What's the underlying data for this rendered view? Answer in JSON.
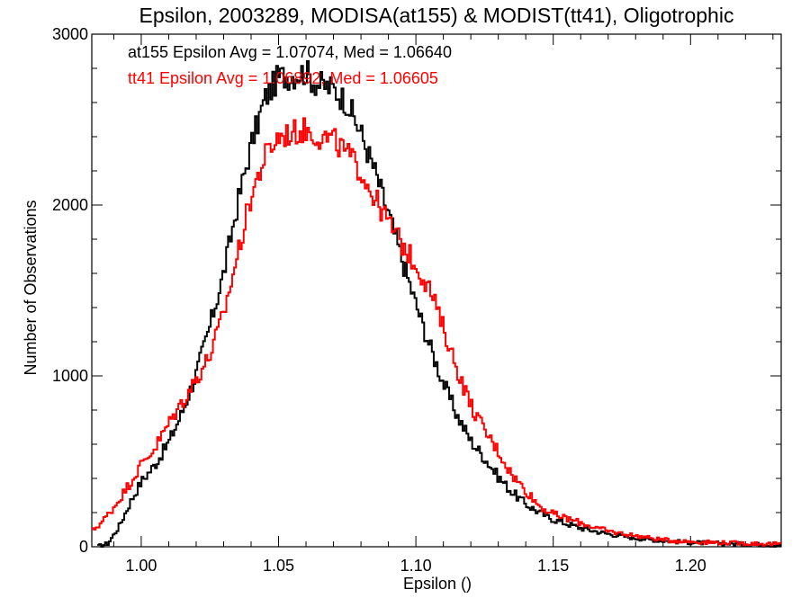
{
  "chart_data": {
    "type": "line",
    "title": "Epsilon, 2003289, MODISA(at155) & MODIST(tt41), Oligotrophic",
    "xlabel": "Epsilon ()",
    "ylabel": "Number of Observations",
    "xlim": [
      0.982,
      1.233
    ],
    "ylim": [
      0,
      3000
    ],
    "x_ticks": [
      1.0,
      1.05,
      1.1,
      1.15,
      1.2
    ],
    "x_tick_labels": [
      "1.00",
      "1.05",
      "1.10",
      "1.15",
      "1.20"
    ],
    "y_ticks": [
      0,
      1000,
      2000,
      3000
    ],
    "y_tick_labels": [
      "0",
      "1000",
      "2000",
      "3000"
    ],
    "grid": false,
    "annotations": [
      {
        "text": "at155 Epsilon Avg = 1.07074, Med = 1.06640",
        "color": "#000000"
      },
      {
        "text": "tt41 Epsilon Avg = 1.06892, Med = 1.06605",
        "color": "#ff0000"
      }
    ],
    "series": [
      {
        "color": "#000000",
        "x": [
          0.984,
          0.988,
          0.992,
          0.996,
          1.0,
          1.005,
          1.01,
          1.015,
          1.02,
          1.025,
          1.03,
          1.035,
          1.04,
          1.045,
          1.05,
          1.055,
          1.06,
          1.063,
          1.066,
          1.07,
          1.075,
          1.08,
          1.085,
          1.09,
          1.095,
          1.1,
          1.105,
          1.11,
          1.115,
          1.12,
          1.125,
          1.13,
          1.135,
          1.14,
          1.145,
          1.15,
          1.16,
          1.17,
          1.18,
          1.19,
          1.2,
          1.21,
          1.22,
          1.233
        ],
        "y": [
          0,
          20,
          120,
          260,
          380,
          480,
          610,
          790,
          1010,
          1290,
          1600,
          2000,
          2350,
          2620,
          2750,
          2760,
          2780,
          2720,
          2700,
          2680,
          2600,
          2420,
          2200,
          1950,
          1680,
          1420,
          1180,
          960,
          770,
          620,
          520,
          410,
          320,
          250,
          200,
          160,
          110,
          75,
          50,
          35,
          25,
          20,
          15,
          10
        ]
      },
      {
        "color": "#ff0000",
        "x": [
          0.982,
          0.986,
          0.99,
          0.995,
          1.0,
          1.005,
          1.01,
          1.015,
          1.02,
          1.025,
          1.03,
          1.035,
          1.04,
          1.045,
          1.05,
          1.055,
          1.06,
          1.065,
          1.07,
          1.075,
          1.08,
          1.085,
          1.09,
          1.095,
          1.1,
          1.105,
          1.11,
          1.115,
          1.12,
          1.125,
          1.13,
          1.135,
          1.14,
          1.145,
          1.15,
          1.16,
          1.17,
          1.18,
          1.19,
          1.2,
          1.21,
          1.22,
          1.233
        ],
        "y": [
          90,
          150,
          230,
          350,
          480,
          580,
          720,
          850,
          980,
          1120,
          1360,
          1700,
          2050,
          2280,
          2400,
          2420,
          2440,
          2400,
          2380,
          2300,
          2200,
          2040,
          1900,
          1770,
          1650,
          1510,
          1280,
          1040,
          830,
          680,
          560,
          420,
          330,
          240,
          190,
          140,
          90,
          65,
          40,
          30,
          25,
          20,
          15
        ]
      }
    ]
  }
}
